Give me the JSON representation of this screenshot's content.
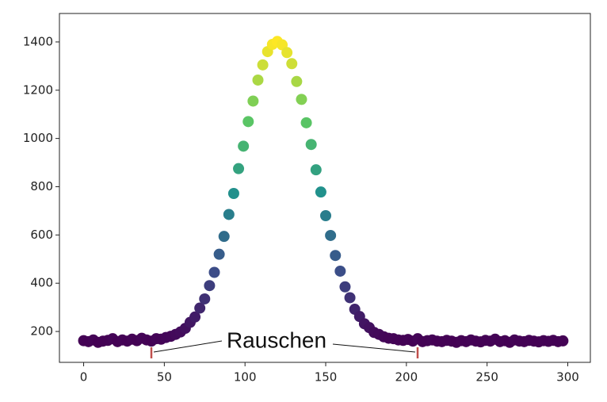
{
  "chart_data": {
    "type": "scatter",
    "x": [
      0,
      3,
      6,
      9,
      12,
      15,
      18,
      21,
      24,
      27,
      30,
      33,
      36,
      39,
      42,
      45,
      48,
      51,
      54,
      57,
      60,
      63,
      66,
      69,
      72,
      75,
      78,
      81,
      84,
      87,
      90,
      93,
      96,
      99,
      102,
      105,
      108,
      111,
      114,
      117,
      120,
      123,
      126,
      129,
      132,
      135,
      138,
      141,
      144,
      147,
      150,
      153,
      156,
      159,
      162,
      165,
      168,
      171,
      174,
      177,
      180,
      183,
      186,
      189,
      192,
      195,
      198,
      201,
      204,
      207,
      210,
      213,
      216,
      219,
      222,
      225,
      228,
      231,
      234,
      237,
      240,
      243,
      246,
      249,
      252,
      255,
      258,
      261,
      264,
      267,
      270,
      273,
      276,
      279,
      282,
      285,
      288,
      291,
      294,
      297
    ],
    "values": [
      162,
      158,
      165,
      155,
      160,
      163,
      170,
      158,
      165,
      160,
      168,
      162,
      172,
      165,
      160,
      170,
      168,
      175,
      180,
      188,
      198,
      213,
      238,
      260,
      297,
      335,
      390,
      445,
      520,
      594,
      685,
      772,
      875,
      968,
      1070,
      1155,
      1242,
      1305,
      1360,
      1390,
      1402,
      1388,
      1356,
      1310,
      1236,
      1162,
      1065,
      975,
      870,
      778,
      680,
      598,
      515,
      450,
      385,
      340,
      292,
      262,
      232,
      216,
      196,
      188,
      178,
      172,
      170,
      165,
      163,
      167,
      160,
      170,
      158,
      162,
      165,
      160,
      158,
      163,
      160,
      155,
      162,
      158,
      165,
      160,
      157,
      163,
      160,
      168,
      158,
      162,
      155,
      165,
      160,
      158,
      163,
      160,
      157,
      162,
      159,
      163,
      158,
      161
    ],
    "colormap": [
      "#440154",
      "#3b528b",
      "#21918c",
      "#5ec962",
      "#fde725"
    ],
    "xlim": [
      -15,
      314
    ],
    "ylim": [
      72,
      1518
    ],
    "xticks": [
      0,
      50,
      100,
      150,
      200,
      250,
      300
    ],
    "yticks": [
      200,
      400,
      600,
      800,
      1000,
      1200,
      1400
    ],
    "annotation": "Rauschen"
  }
}
